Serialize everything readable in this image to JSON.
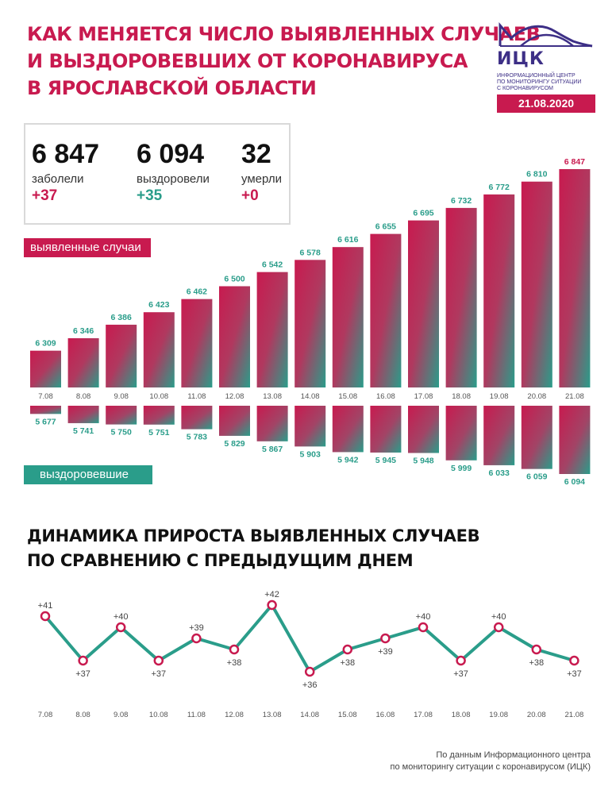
{
  "header": {
    "title_lines": [
      "Как меняется число выявленных случаев",
      "и выздоровевших от коронавируса",
      "в Ярославской области"
    ],
    "logo_name": "ИЦК",
    "logo_subtitle_lines": [
      "Информационный центр",
      "по мониторингу ситуации",
      "с коронавирусом"
    ],
    "date": "21.08.2020"
  },
  "stats": {
    "cases": {
      "value": "6 847",
      "label": "заболели",
      "increment": "+37"
    },
    "recovered": {
      "value": "6 094",
      "label": "выздоровели",
      "increment": "+35"
    },
    "deaths": {
      "value": "32",
      "label": "умерли",
      "increment": "+0"
    }
  },
  "labels": {
    "cases_tag": "выявленные случаи",
    "recovered_tag": "выздоровевшие"
  },
  "colors": {
    "brand_red": "#c81a4f",
    "brand_teal": "#2a9d8a",
    "logo_purple": "#3d2f86"
  },
  "chart_data": [
    {
      "type": "bar",
      "categories": [
        "7.08",
        "8.08",
        "9.08",
        "10.08",
        "11.08",
        "12.08",
        "13.08",
        "14.08",
        "15.08",
        "16.08",
        "17.08",
        "18.08",
        "19.08",
        "20.08",
        "21.08"
      ],
      "series": [
        {
          "name": "выявленные случаи",
          "values": [
            6309,
            6346,
            6386,
            6423,
            6462,
            6500,
            6542,
            6578,
            6616,
            6655,
            6695,
            6732,
            6772,
            6810,
            6847
          ],
          "labels": [
            "6 309",
            "6 346",
            "6 386",
            "6 423",
            "6 462",
            "6 500",
            "6 542",
            "6 578",
            "6 616",
            "6 655",
            "6 695",
            "6 732",
            "6 772",
            "6 810",
            "6 847"
          ]
        },
        {
          "name": "выздоровевшие",
          "values": [
            5677,
            5741,
            5750,
            5751,
            5783,
            5829,
            5867,
            5903,
            5942,
            5945,
            5948,
            5999,
            6033,
            6059,
            6094
          ],
          "labels": [
            "5 677",
            "5 741",
            "5 750",
            "5 751",
            "5 783",
            "5 829",
            "5 867",
            "5 903",
            "5 942",
            "5 945",
            "5 948",
            "5 999",
            "6 033",
            "6 059",
            "6 094"
          ]
        }
      ]
    },
    {
      "type": "line",
      "title": "Динамика прироста выявленных случаев по сравнению с предыдущим днем",
      "title_lines": [
        "Динамика прироста выявленных случаев",
        "по сравнению с предыдущим днем"
      ],
      "categories": [
        "7.08",
        "8.08",
        "9.08",
        "10.08",
        "11.08",
        "12.08",
        "13.08",
        "14.08",
        "15.08",
        "16.08",
        "17.08",
        "18.08",
        "19.08",
        "20.08",
        "21.08"
      ],
      "values": [
        41,
        37,
        40,
        37,
        39,
        38,
        42,
        36,
        38,
        39,
        40,
        37,
        40,
        38,
        37
      ],
      "labels": [
        "+41",
        "+37",
        "+40",
        "+37",
        "+39",
        "+38",
        "+42",
        "+36",
        "+38",
        "+39",
        "+40",
        "+37",
        "+40",
        "+38",
        "+37"
      ]
    }
  ],
  "footer_lines": [
    "По данным Информационного центра",
    "по мониторингу ситуации с коронавирусом (ИЦК)"
  ]
}
